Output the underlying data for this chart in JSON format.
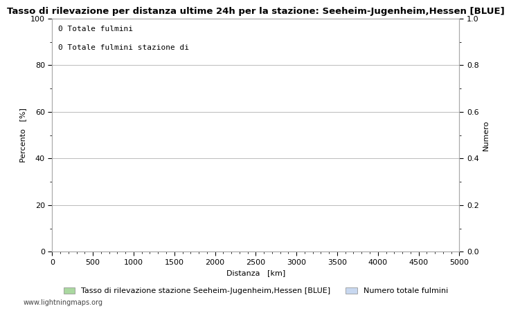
{
  "title": "Tasso di rilevazione per distanza ultime 24h per la stazione: Seeheim-Jugenheim,Hessen [BLUE]",
  "xlabel": "Distanza   [km]",
  "ylabel_left": "Percento   [%]",
  "ylabel_right": "Numero",
  "annotation_line1": "0 Totale fulmini",
  "annotation_line2": "0 Totale fulmini stazione di",
  "xlim": [
    0,
    5000
  ],
  "ylim_left": [
    0,
    100
  ],
  "ylim_right": [
    0,
    1.0
  ],
  "xticks": [
    0,
    500,
    1000,
    1500,
    2000,
    2500,
    3000,
    3500,
    4000,
    4500,
    5000
  ],
  "yticks_left_major": [
    0,
    20,
    40,
    60,
    80,
    100
  ],
  "yticks_right_major": [
    0.0,
    0.2,
    0.4,
    0.6,
    0.8,
    1.0
  ],
  "yticks_left_minor": [
    10,
    30,
    50,
    70,
    90
  ],
  "yticks_right_minor": [
    0.1,
    0.3,
    0.5,
    0.7,
    0.9
  ],
  "grid_major_yticks": [
    0,
    20,
    40,
    60,
    80,
    100
  ],
  "legend_label_left": "Tasso di rilevazione stazione Seeheim-Jugenheim,Hessen [BLUE]",
  "legend_label_right": "Numero totale fulmini",
  "legend_color_left": "#aad8a0",
  "legend_color_right": "#c8d8f0",
  "watermark": "www.lightningmaps.org",
  "bg_color": "#ffffff",
  "grid_color": "#b0b0b0",
  "title_fontsize": 9.5,
  "axis_fontsize": 8,
  "tick_fontsize": 8,
  "legend_fontsize": 8,
  "annotation_fontsize": 8,
  "watermark_fontsize": 7
}
